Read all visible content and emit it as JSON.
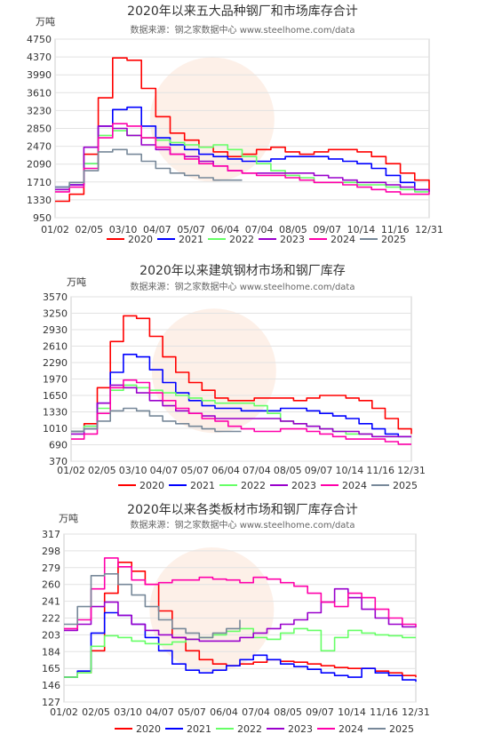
{
  "chart_data": [
    {
      "type": "line",
      "title": "2020年以来五大品种钢厂和市场库存合计",
      "subtitle": "数据来源：钢之家数据中心 www.steelhome.com/data",
      "unit": "万吨",
      "ylim": [
        950,
        4750
      ],
      "yticks": [
        950,
        1330,
        1710,
        2090,
        2470,
        2850,
        3230,
        3610,
        3990,
        4370,
        4750
      ],
      "xticks": [
        "01/02",
        "02/05",
        "03/10",
        "04/07",
        "05/07",
        "06/04",
        "07/04",
        "08/05",
        "09/07",
        "10/14",
        "11/16",
        "12/31"
      ],
      "grid": true,
      "legend_position": "bottom",
      "series": [
        {
          "name": "2020",
          "color": "#ff0000",
          "values": [
            1300,
            1450,
            2300,
            3500,
            4350,
            4300,
            3700,
            3100,
            2750,
            2600,
            2450,
            2350,
            2250,
            2300,
            2400,
            2450,
            2350,
            2300,
            2350,
            2400,
            2400,
            2350,
            2250,
            2100,
            1900,
            1750,
            1500
          ]
        },
        {
          "name": "2021",
          "color": "#0000ff",
          "values": [
            1600,
            1650,
            2100,
            2900,
            3250,
            3300,
            2900,
            2650,
            2500,
            2400,
            2300,
            2250,
            2200,
            2150,
            2150,
            2200,
            2250,
            2250,
            2250,
            2200,
            2150,
            2100,
            2000,
            1850,
            1700,
            1550,
            1550
          ]
        },
        {
          "name": "2022",
          "color": "#66ff66",
          "values": [
            1550,
            1700,
            2100,
            2700,
            2800,
            2700,
            2650,
            2600,
            2550,
            2500,
            2450,
            2500,
            2400,
            2250,
            2100,
            1950,
            1850,
            1800,
            1700,
            1700,
            1700,
            1650,
            1650,
            1600,
            1550,
            1500,
            1500
          ]
        },
        {
          "name": "2023",
          "color": "#9900cc",
          "values": [
            1550,
            1650,
            2450,
            2900,
            2850,
            2700,
            2500,
            2400,
            2300,
            2250,
            2150,
            2050,
            1950,
            1900,
            1900,
            1900,
            1900,
            1900,
            1850,
            1800,
            1750,
            1700,
            1700,
            1650,
            1600,
            1550,
            1500
          ]
        },
        {
          "name": "2024",
          "color": "#ff00aa",
          "values": [
            1500,
            1600,
            2000,
            2650,
            2950,
            2900,
            2650,
            2450,
            2300,
            2200,
            2100,
            2050,
            1950,
            1900,
            1850,
            1850,
            1800,
            1750,
            1700,
            1700,
            1650,
            1600,
            1550,
            1500,
            1450,
            1450,
            1500
          ]
        },
        {
          "name": "2025",
          "color": "#778899",
          "values": [
            1600,
            1700,
            1950,
            2350,
            2400,
            2300,
            2150,
            2000,
            1900,
            1850,
            1800,
            1750,
            1750,
            1750,
            null,
            null,
            null,
            null,
            null,
            null,
            null,
            null,
            null,
            null,
            null,
            null,
            null
          ]
        }
      ]
    },
    {
      "type": "line",
      "title": "2020年以来建筑钢材市场和钢厂库存",
      "subtitle": "数据来源：钢之家数据中心 www.steelhome.com/data",
      "unit": "万吨",
      "ylim": [
        370,
        3570
      ],
      "yticks": [
        370,
        690,
        1010,
        1330,
        1650,
        1970,
        2290,
        2610,
        2930,
        3250,
        3570
      ],
      "xticks": [
        "01/02",
        "02/05",
        "03/10",
        "04/07",
        "05/07",
        "06/04",
        "07/04",
        "08/05",
        "09/07",
        "10/14",
        "11/16",
        "12/31"
      ],
      "grid": true,
      "legend_position": "bottom",
      "series": [
        {
          "name": "2020",
          "color": "#ff0000",
          "values": [
            950,
            1100,
            1800,
            2700,
            3200,
            3150,
            2800,
            2400,
            2100,
            1900,
            1750,
            1600,
            1550,
            1550,
            1600,
            1600,
            1600,
            1550,
            1600,
            1650,
            1650,
            1600,
            1550,
            1400,
            1200,
            1000,
            900
          ]
        },
        {
          "name": "2021",
          "color": "#0000ff",
          "values": [
            950,
            1050,
            1500,
            2100,
            2450,
            2400,
            2150,
            1900,
            1700,
            1550,
            1450,
            1400,
            1400,
            1350,
            1350,
            1350,
            1400,
            1400,
            1350,
            1300,
            1250,
            1200,
            1100,
            1000,
            900,
            850,
            850
          ]
        },
        {
          "name": "2022",
          "color": "#66ff66",
          "values": [
            950,
            1050,
            1400,
            1750,
            1850,
            1800,
            1750,
            1700,
            1650,
            1600,
            1550,
            1500,
            1500,
            1500,
            1450,
            1300,
            1150,
            1100,
            1050,
            1000,
            950,
            900,
            900,
            850,
            850,
            850,
            850
          ]
        },
        {
          "name": "2023",
          "color": "#9900cc",
          "values": [
            900,
            1000,
            1500,
            1850,
            1800,
            1700,
            1550,
            1450,
            1350,
            1300,
            1250,
            1200,
            1200,
            1200,
            1200,
            1200,
            1150,
            1100,
            1050,
            1000,
            950,
            950,
            900,
            850,
            850,
            850,
            850
          ]
        },
        {
          "name": "2024",
          "color": "#ff00aa",
          "values": [
            800,
            900,
            1300,
            1800,
            1950,
            1900,
            1700,
            1550,
            1400,
            1300,
            1200,
            1150,
            1050,
            1000,
            950,
            950,
            1000,
            1000,
            950,
            900,
            850,
            800,
            800,
            800,
            750,
            700,
            700
          ]
        },
        {
          "name": "2025",
          "color": "#778899",
          "values": [
            950,
            1000,
            1150,
            1350,
            1400,
            1350,
            1250,
            1150,
            1100,
            1050,
            1000,
            950,
            950,
            950,
            null,
            null,
            null,
            null,
            null,
            null,
            null,
            null,
            null,
            null,
            null,
            null,
            null
          ]
        }
      ]
    },
    {
      "type": "line",
      "title": "2020年以来各类板材市场和钢厂库存合计",
      "subtitle": "数据来源：钢之家数据中心 www.steelhome.com/data",
      "unit": "万吨",
      "ylim": [
        127,
        317
      ],
      "yticks": [
        127,
        146,
        165,
        184,
        203,
        222,
        241,
        260,
        279,
        298,
        317
      ],
      "xticks": [
        "01/02",
        "02/05",
        "03/10",
        "04/07",
        "05/07",
        "06/04",
        "07/04",
        "08/05",
        "09/07",
        "10/14",
        "11/16",
        "12/31"
      ],
      "grid": true,
      "legend_position": "bottom",
      "series": [
        {
          "name": "2020",
          "color": "#ff0000",
          "values": [
            155,
            160,
            185,
            250,
            285,
            275,
            260,
            230,
            200,
            185,
            175,
            170,
            168,
            170,
            172,
            175,
            173,
            172,
            170,
            168,
            166,
            165,
            165,
            162,
            160,
            157,
            155
          ]
        },
        {
          "name": "2021",
          "color": "#0000ff",
          "values": [
            155,
            162,
            205,
            228,
            225,
            215,
            200,
            185,
            170,
            163,
            160,
            163,
            168,
            175,
            180,
            175,
            170,
            167,
            164,
            160,
            157,
            155,
            165,
            160,
            157,
            152,
            150
          ]
        },
        {
          "name": "2022",
          "color": "#66ff66",
          "values": [
            155,
            160,
            190,
            202,
            200,
            196,
            193,
            192,
            195,
            198,
            200,
            203,
            207,
            210,
            200,
            198,
            205,
            210,
            208,
            185,
            200,
            208,
            205,
            203,
            202,
            200,
            200
          ]
        },
        {
          "name": "2023",
          "color": "#9900cc",
          "values": [
            208,
            215,
            235,
            240,
            225,
            215,
            208,
            203,
            200,
            198,
            196,
            196,
            196,
            200,
            205,
            210,
            215,
            220,
            228,
            240,
            255,
            245,
            232,
            222,
            215,
            212,
            213
          ]
        },
        {
          "name": "2024",
          "color": "#ff00aa",
          "values": [
            210,
            220,
            255,
            290,
            280,
            265,
            260,
            262,
            265,
            265,
            268,
            266,
            265,
            262,
            268,
            266,
            262,
            258,
            250,
            240,
            235,
            250,
            245,
            232,
            222,
            215,
            212
          ]
        },
        {
          "name": "2025",
          "color": "#778899",
          "values": [
            215,
            235,
            270,
            272,
            260,
            248,
            235,
            220,
            210,
            205,
            200,
            205,
            210,
            220,
            null,
            null,
            null,
            null,
            null,
            null,
            null,
            null,
            null,
            null,
            null,
            null,
            null
          ]
        }
      ]
    }
  ]
}
